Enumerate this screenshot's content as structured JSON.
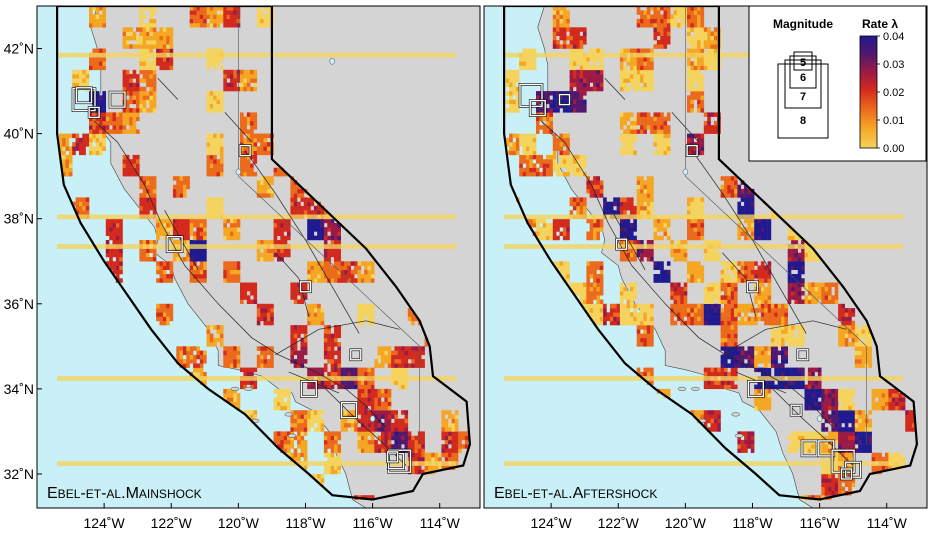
{
  "panels": [
    {
      "id": "mainshock",
      "title_main": "Ebel-et-al.Mainshock",
      "seed": 7,
      "density": 0.9,
      "event_boxes": [
        {
          "lon": -124.6,
          "lat": 40.8,
          "mag": 7
        },
        {
          "lon": -124.6,
          "lat": 40.9,
          "mag": 6
        },
        {
          "lon": -124.3,
          "lat": 40.5,
          "mag": 5
        },
        {
          "lon": -123.6,
          "lat": 40.8,
          "mag": 6
        },
        {
          "lon": -119.8,
          "lat": 39.6,
          "mag": 5
        },
        {
          "lon": -121.9,
          "lat": 37.4,
          "mag": 6
        },
        {
          "lon": -118.0,
          "lat": 36.4,
          "mag": 5
        },
        {
          "lon": -116.5,
          "lat": 34.8,
          "mag": 5
        },
        {
          "lon": -117.9,
          "lat": 34.0,
          "mag": 6
        },
        {
          "lon": -116.7,
          "lat": 33.5,
          "mag": 6
        },
        {
          "lon": -115.2,
          "lat": 32.3,
          "mag": 7
        },
        {
          "lon": -115.3,
          "lat": 32.3,
          "mag": 6
        },
        {
          "lon": -115.4,
          "lat": 32.4,
          "mag": 5
        }
      ]
    },
    {
      "id": "aftershock",
      "title_main": "Ebel-et-al.Aftershock",
      "seed": 19,
      "density": 1.5,
      "event_boxes": [
        {
          "lon": -124.6,
          "lat": 40.9,
          "mag": 7
        },
        {
          "lon": -124.4,
          "lat": 40.6,
          "mag": 6
        },
        {
          "lon": -123.6,
          "lat": 40.8,
          "mag": 5
        },
        {
          "lon": -119.8,
          "lat": 39.6,
          "mag": 5
        },
        {
          "lon": -121.9,
          "lat": 37.4,
          "mag": 5
        },
        {
          "lon": -118.0,
          "lat": 36.4,
          "mag": 5
        },
        {
          "lon": -116.5,
          "lat": 34.8,
          "mag": 5
        },
        {
          "lon": -117.9,
          "lat": 34.0,
          "mag": 6
        },
        {
          "lon": -116.7,
          "lat": 33.5,
          "mag": 5
        },
        {
          "lon": -116.3,
          "lat": 32.6,
          "mag": 6
        },
        {
          "lon": -115.8,
          "lat": 32.6,
          "mag": 6
        },
        {
          "lon": -115.3,
          "lat": 32.3,
          "mag": 7
        },
        {
          "lon": -115.0,
          "lat": 32.1,
          "mag": 6
        },
        {
          "lon": -115.2,
          "lat": 32.0,
          "mag": 5
        }
      ]
    }
  ],
  "axes": {
    "lat_ticks": [
      {
        "value": 42,
        "label": "42˚N"
      },
      {
        "value": 40,
        "label": "40˚N"
      },
      {
        "value": 38,
        "label": "38˚N"
      },
      {
        "value": 36,
        "label": "36˚N"
      },
      {
        "value": 34,
        "label": "34˚N"
      },
      {
        "value": 32,
        "label": "32˚N"
      }
    ],
    "lon_ticks": [
      {
        "value": -124,
        "label": "124˚W"
      },
      {
        "value": -122,
        "label": "122˚W"
      },
      {
        "value": -120,
        "label": "120˚W"
      },
      {
        "value": -118,
        "label": "118˚W"
      },
      {
        "value": -116,
        "label": "116˚W"
      },
      {
        "value": -114,
        "label": "114˚W"
      }
    ],
    "lon_range": [
      -126,
      -112.8
    ],
    "lat_range": [
      31.2,
      43.0
    ]
  },
  "legend": {
    "magnitude_title": "Magnitude",
    "rate_title": "Rate λ",
    "magnitudes": [
      "5",
      "6",
      "7",
      "8"
    ],
    "rate_ticks": [
      "0.04",
      "0.03",
      "0.02",
      "0.01",
      "0.00"
    ],
    "rate_range": [
      0,
      0.04
    ]
  },
  "colors": {
    "ocean": "#c8f0f6",
    "land": "#d4d4d4",
    "region_fill": "#e7f7fa",
    "border": "#000000",
    "scale": [
      "#f4d35e",
      "#f5a623",
      "#ec6a1c",
      "#d32a1e",
      "#9b1b45",
      "#52186e",
      "#1f1a8f"
    ]
  }
}
